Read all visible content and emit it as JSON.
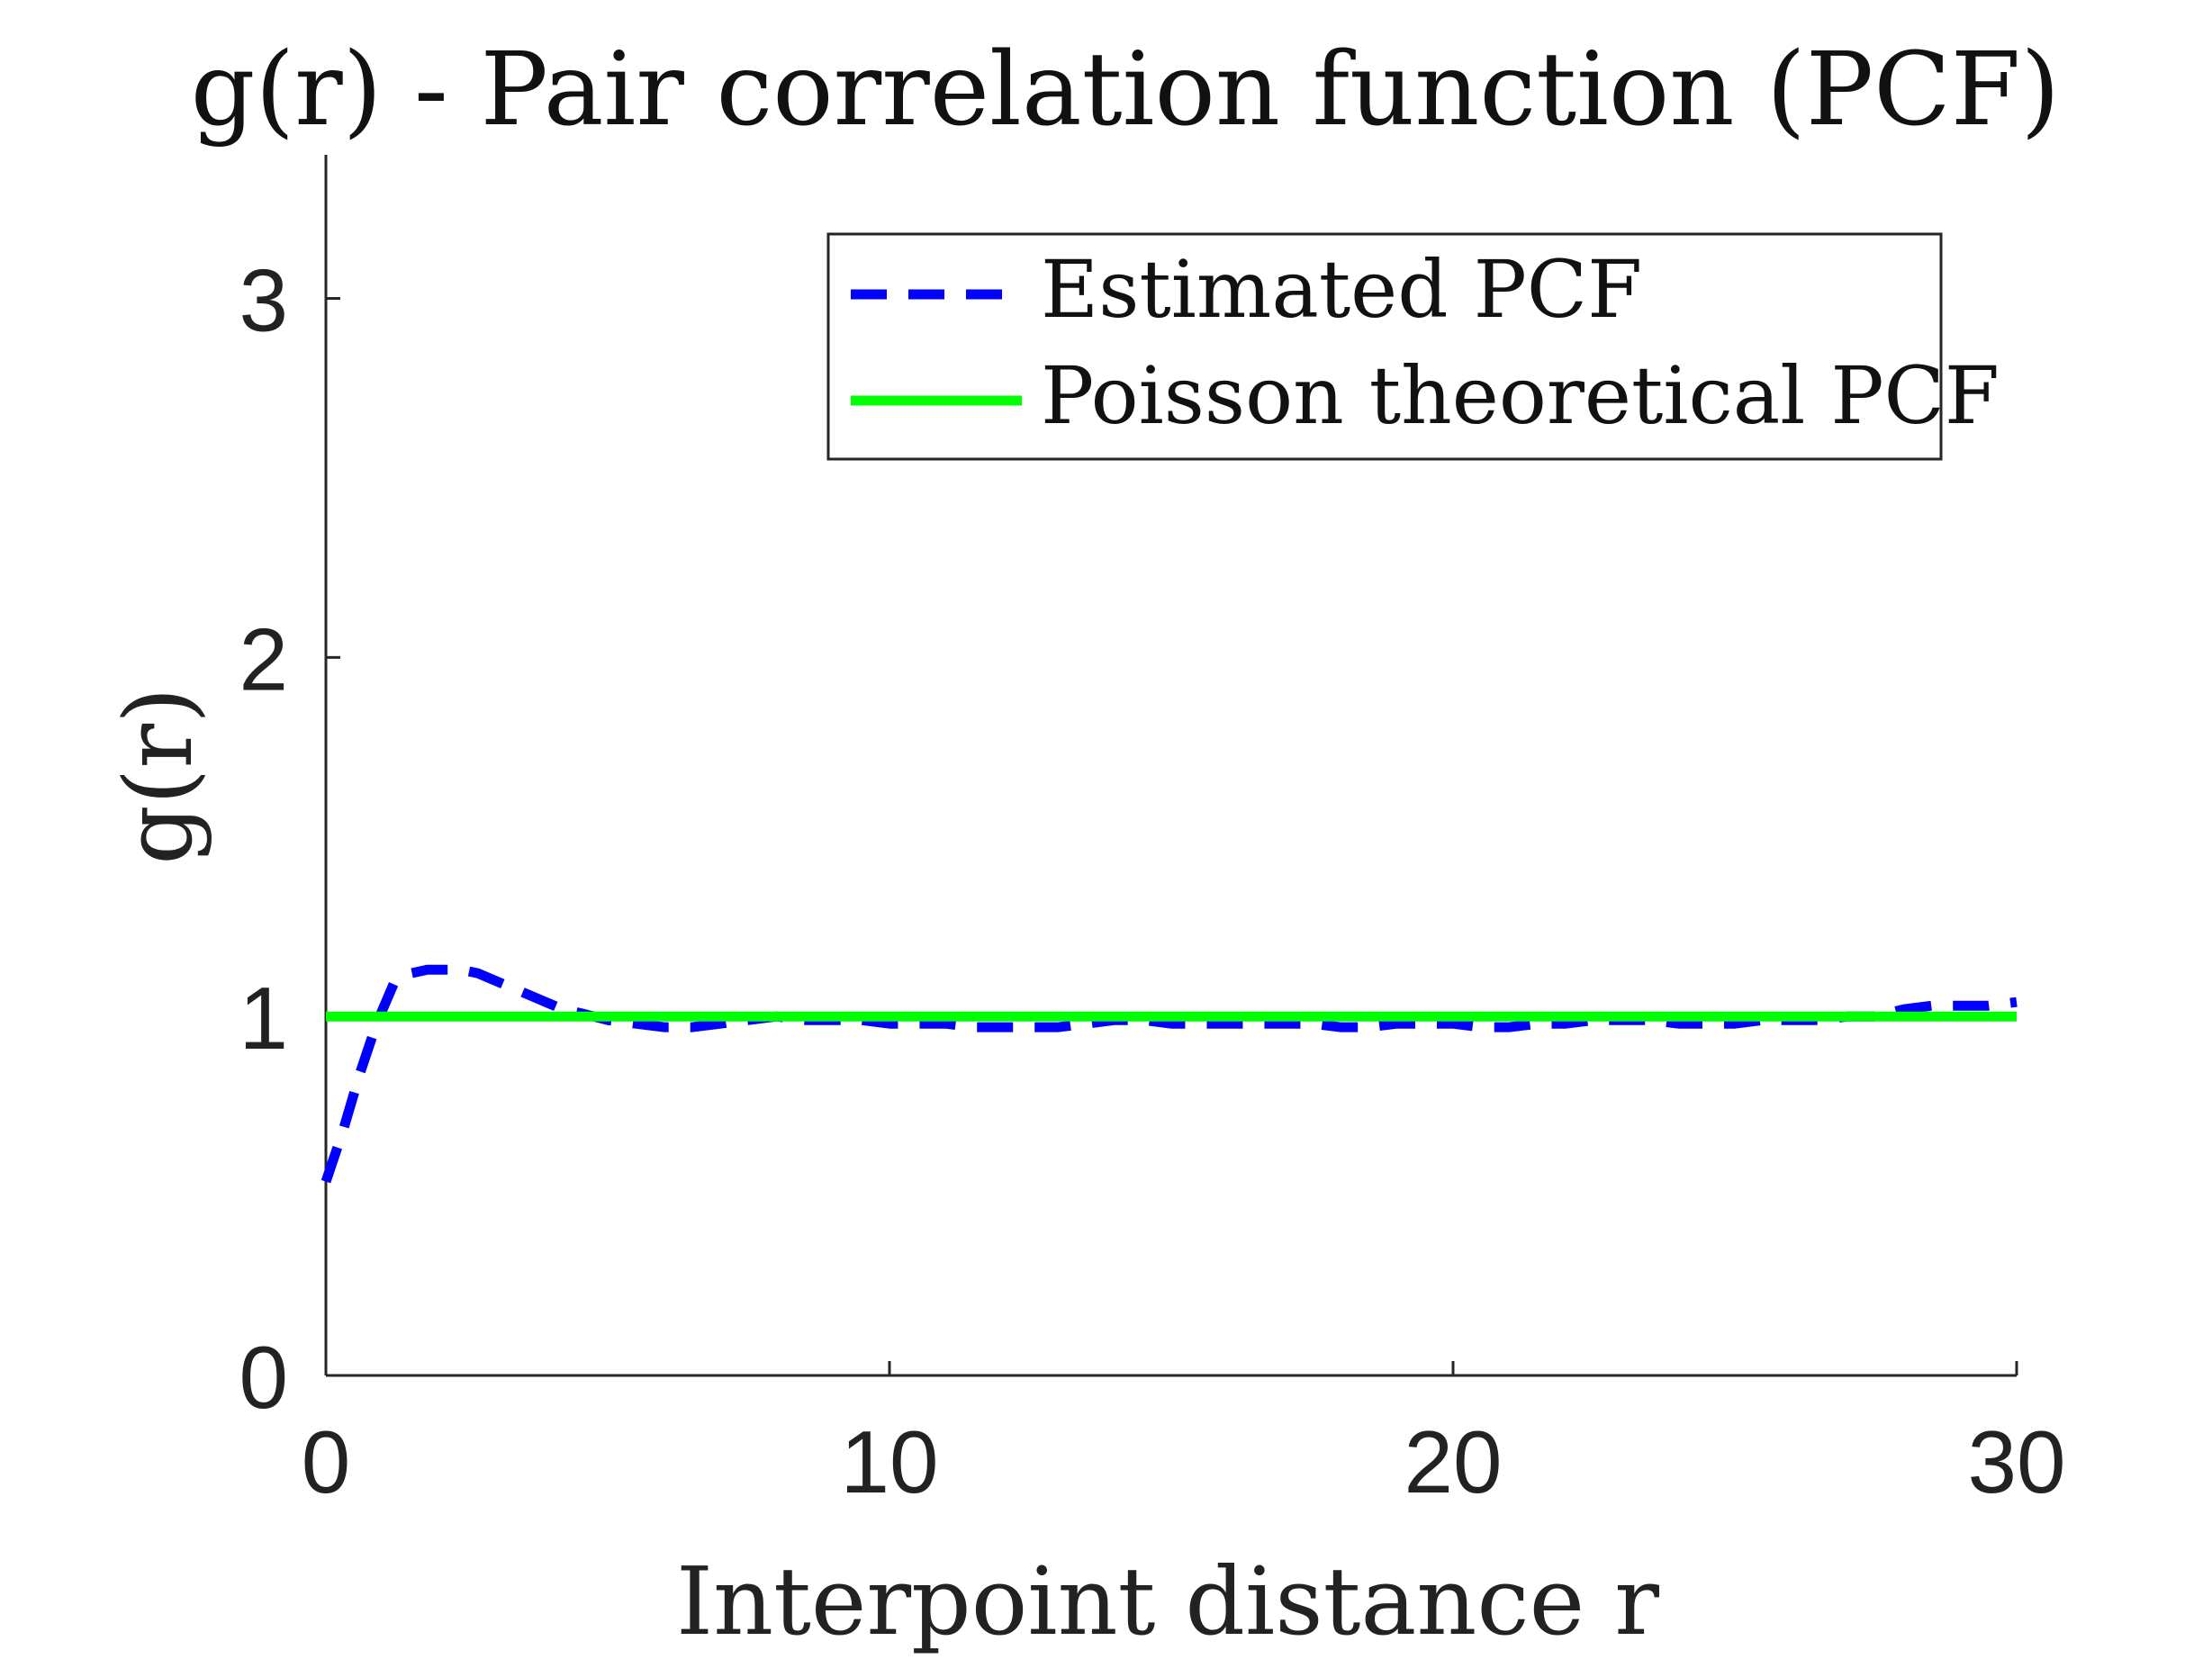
{
  "colors": {
    "background": "#ffffff",
    "axis": "#262626",
    "estimated": "#0000ff",
    "poisson": "#00ff00"
  },
  "chart_data": {
    "type": "line",
    "title": "g(r) - Pair correlation function (PCF)",
    "xlabel": "Interpoint distance r",
    "ylabel": "g(r)",
    "xlim": [
      0,
      30
    ],
    "ylim": [
      0,
      3.4
    ],
    "xticks": [
      0,
      10,
      20,
      30
    ],
    "yticks": [
      0,
      1,
      2,
      3
    ],
    "grid": false,
    "legend_position": "top-right",
    "series": [
      {
        "name": "Estimated PCF",
        "style": "dashed",
        "color": "#0000ff",
        "x": [
          0,
          0.3,
          0.6,
          0.9,
          1.2,
          1.5,
          1.8,
          2.1,
          2.4,
          2.7,
          3.0,
          3.3,
          3.6,
          3.9,
          4.2,
          4.5,
          5,
          5.5,
          6,
          6.5,
          7,
          7.5,
          8,
          8.5,
          9,
          9.5,
          10,
          10.5,
          11,
          11.5,
          12,
          12.5,
          13,
          13.5,
          14,
          14.5,
          15,
          15.5,
          16,
          16.5,
          17,
          17.5,
          18,
          18.5,
          19,
          19.5,
          20,
          20.5,
          21,
          21.5,
          22,
          22.5,
          23,
          23.5,
          24,
          24.5,
          25,
          25.5,
          26,
          26.5,
          27,
          27.5,
          28,
          28.5,
          29,
          29.5,
          30
        ],
        "y": [
          0.54,
          0.68,
          0.84,
          0.98,
          1.09,
          1.12,
          1.13,
          1.13,
          1.13,
          1.12,
          1.1,
          1.08,
          1.06,
          1.04,
          1.02,
          1.01,
          0.99,
          0.98,
          0.97,
          0.97,
          0.98,
          0.99,
          1.0,
          0.99,
          0.99,
          0.99,
          0.98,
          0.98,
          0.98,
          0.97,
          0.97,
          0.97,
          0.97,
          0.98,
          0.99,
          0.99,
          0.98,
          0.98,
          0.98,
          0.98,
          0.98,
          0.98,
          0.97,
          0.97,
          0.98,
          0.98,
          0.98,
          0.97,
          0.97,
          0.98,
          0.98,
          0.99,
          0.99,
          0.99,
          0.98,
          0.98,
          0.98,
          0.99,
          0.99,
          0.99,
          1.0,
          1.0,
          1.02,
          1.03,
          1.03,
          1.03,
          1.04
        ]
      },
      {
        "name": "Poisson theoretical PCF",
        "style": "solid",
        "color": "#00ff00",
        "x": [
          0,
          30
        ],
        "y": [
          1,
          1
        ]
      }
    ]
  }
}
